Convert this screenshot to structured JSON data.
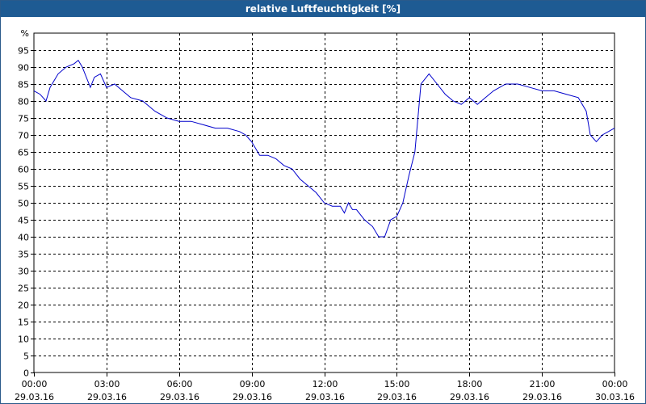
{
  "window": {
    "title": "relative Luftfeuchtigkeit [%]",
    "titlebar_color": "#1e5b93"
  },
  "chart_data": {
    "type": "line",
    "title": "relative Luftfeuchtigkeit [%]",
    "xlabel": "",
    "ylabel": "%",
    "ylim": [
      0,
      100
    ],
    "yticks": [
      0,
      5,
      10,
      15,
      20,
      25,
      30,
      35,
      40,
      45,
      50,
      55,
      60,
      65,
      70,
      75,
      80,
      85,
      90,
      95
    ],
    "xlim": [
      "29.03.16 00:00",
      "30.03.16 00:00"
    ],
    "xticks": [
      {
        "time": "00:00",
        "date": "29.03.16"
      },
      {
        "time": "03:00",
        "date": "29.03.16"
      },
      {
        "time": "06:00",
        "date": "29.03.16"
      },
      {
        "time": "09:00",
        "date": "29.03.16"
      },
      {
        "time": "12:00",
        "date": "29.03.16"
      },
      {
        "time": "15:00",
        "date": "29.03.16"
      },
      {
        "time": "18:00",
        "date": "29.03.16"
      },
      {
        "time": "21:00",
        "date": "29.03.16"
      },
      {
        "time": "00:00",
        "date": "30.03.16"
      }
    ],
    "grid": true,
    "line_color": "#0000cc",
    "series": [
      {
        "x": [
          "29.03.16 00:00",
          "29.03.16 00:15",
          "29.03.16 00:30",
          "29.03.16 00:40",
          "29.03.16 01:00",
          "29.03.16 01:20",
          "29.03.16 01:40",
          "29.03.16 01:50",
          "29.03.16 02:00",
          "29.03.16 02:20",
          "29.03.16 02:30",
          "29.03.16 02:45",
          "29.03.16 03:00",
          "29.03.16 03:20",
          "29.03.16 03:40",
          "29.03.16 04:00",
          "29.03.16 04:30",
          "29.03.16 05:00",
          "29.03.16 05:30",
          "29.03.16 06:00",
          "29.03.16 06:30",
          "29.03.16 07:00",
          "29.03.16 07:30",
          "29.03.16 08:00",
          "29.03.16 08:30",
          "29.03.16 08:45",
          "29.03.16 09:00",
          "29.03.16 09:20",
          "29.03.16 09:40",
          "29.03.16 10:00",
          "29.03.16 10:20",
          "29.03.16 10:40",
          "29.03.16 11:00",
          "29.03.16 11:20",
          "29.03.16 11:40",
          "29.03.16 12:00",
          "29.03.16 12:20",
          "29.03.16 12:40",
          "29.03.16 12:50",
          "29.03.16 13:00",
          "29.03.16 13:10",
          "29.03.16 13:20",
          "29.03.16 13:40",
          "29.03.16 14:00",
          "29.03.16 14:15",
          "29.03.16 14:30",
          "29.03.16 14:45",
          "29.03.16 15:00",
          "29.03.16 15:15",
          "29.03.16 15:30",
          "29.03.16 15:45",
          "29.03.16 16:00",
          "29.03.16 16:20",
          "29.03.16 16:40",
          "29.03.16 17:00",
          "29.03.16 17:20",
          "29.03.16 17:40",
          "29.03.16 18:00",
          "29.03.16 18:20",
          "29.03.16 18:40",
          "29.03.16 19:00",
          "29.03.16 19:30",
          "29.03.16 20:00",
          "29.03.16 20:30",
          "29.03.16 21:00",
          "29.03.16 21:30",
          "29.03.16 22:00",
          "29.03.16 22:30",
          "29.03.16 22:50",
          "29.03.16 23:00",
          "29.03.16 23:15",
          "29.03.16 23:30",
          "29.03.16 23:45",
          "30.03.16 00:00"
        ],
        "values": [
          83,
          82,
          80,
          84,
          88,
          90,
          91,
          92,
          90,
          84,
          87,
          88,
          84,
          85,
          83,
          81,
          80,
          77,
          75,
          74,
          74,
          73,
          72,
          72,
          71,
          70,
          68,
          64,
          64,
          63,
          61,
          60,
          57,
          55,
          53,
          50,
          49,
          49,
          47,
          50,
          48,
          48,
          45,
          43,
          40,
          40,
          45,
          46,
          50,
          58,
          65,
          85,
          88,
          85,
          82,
          80,
          79,
          81,
          79,
          81,
          83,
          85,
          85,
          84,
          83,
          83,
          82,
          81,
          77,
          70,
          68,
          70,
          71,
          72
        ]
      }
    ]
  }
}
